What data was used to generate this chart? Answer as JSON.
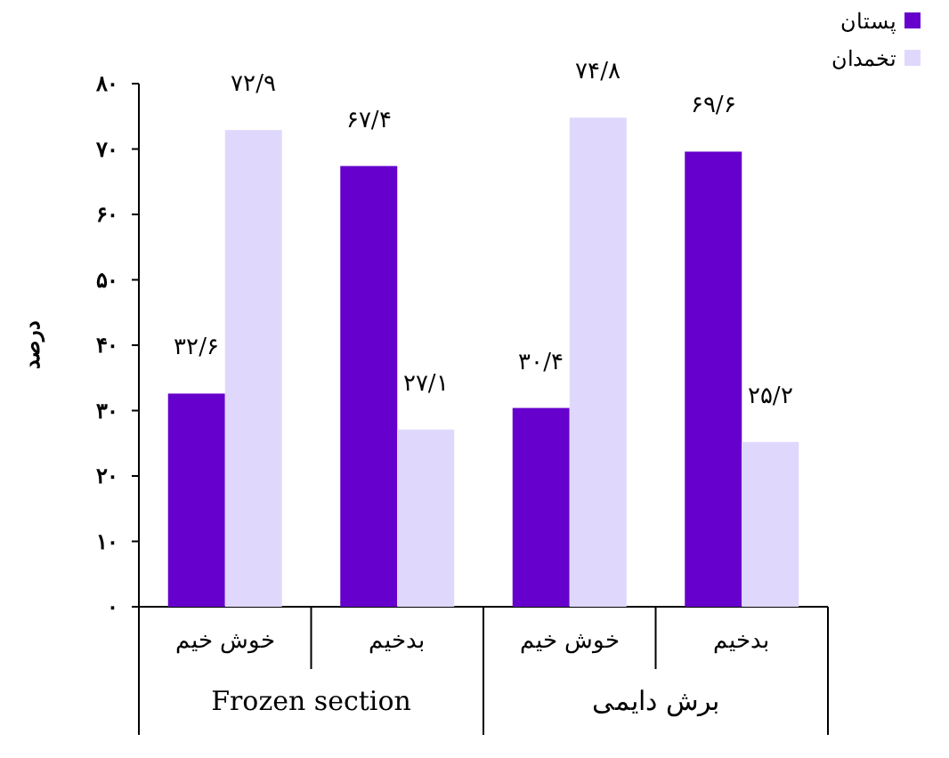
{
  "chart_data": {
    "type": "bar",
    "ylabel": "درصد",
    "categories": [
      "خوش خیم",
      "بدخیم",
      "خوش خیم",
      "بدخیم"
    ],
    "series": [
      {
        "name": "پستان",
        "color": "#6600cc",
        "values": [
          32.6,
          67.4,
          30.4,
          69.6
        ],
        "value_labels": [
          "۳۲/۶",
          "۶۷/۴",
          "۳۰/۴",
          "۶۹/۶"
        ]
      },
      {
        "name": "تخمدان",
        "color": "#e0d8fc",
        "values": [
          72.9,
          27.1,
          74.8,
          25.2
        ],
        "value_labels": [
          "۷۲/۹",
          "۲۷/۱",
          "۷۴/۸",
          "۲۵/۲"
        ]
      }
    ],
    "ylim": [
      0,
      80
    ],
    "yticks": [
      {
        "value": 0,
        "label": "۰"
      },
      {
        "value": 10,
        "label": "۱۰"
      },
      {
        "value": 20,
        "label": "۲۰"
      },
      {
        "value": 30,
        "label": "۳۰"
      },
      {
        "value": 40,
        "label": "۴۰"
      },
      {
        "value": 50,
        "label": "۵۰"
      },
      {
        "value": 60,
        "label": "۶۰"
      },
      {
        "value": 70,
        "label": "۷۰"
      },
      {
        "value": 80,
        "label": "۸۰"
      }
    ],
    "annotations": [
      "Frozen section",
      "برش دایمی"
    ],
    "grid": false,
    "legend": "top right"
  }
}
